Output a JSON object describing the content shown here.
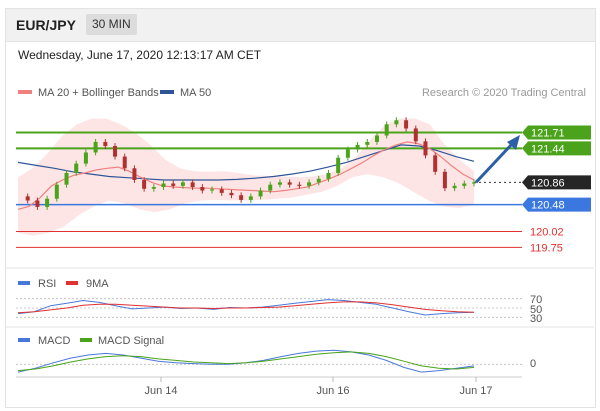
{
  "header": {
    "pair": "EUR/JPY",
    "timeframe": "30 MIN"
  },
  "timestamp": "Wednesday, June 17, 2020 12:13:17 AM CET",
  "legend": {
    "ma20_bb": "MA 20 + Bollinger Bands",
    "ma50": "MA 50",
    "credit": "Research © 2020 Trading Central",
    "rsi": "RSI",
    "ma9": "9MA",
    "macd": "MACD",
    "macd_signal": "MACD Signal"
  },
  "colors": {
    "ma20": "#f08080",
    "band": "#fde0e0",
    "ma50": "#2f5597",
    "resistance": "#4aa31a",
    "support": "#3a78e0",
    "target_red": "#e03030",
    "arrow": "#2d5fa8",
    "candle_up": "#4aa31a",
    "candle_down": "#b03030"
  },
  "levels": [
    {
      "value": 121.71,
      "label": "121.71",
      "kind": "resistance"
    },
    {
      "value": 121.44,
      "label": "121.44",
      "kind": "resistance"
    },
    {
      "value": 120.86,
      "label": "120.86",
      "kind": "last"
    },
    {
      "value": 120.48,
      "label": "120.48",
      "kind": "support"
    },
    {
      "value": 120.02,
      "label": "120.02",
      "kind": "target"
    },
    {
      "value": 119.75,
      "label": "119.75",
      "kind": "target"
    }
  ],
  "x_axis": {
    "ticks": [
      "Jun 14",
      "Jun 16",
      "Jun 17"
    ]
  },
  "rsi_axis": {
    "ticks": [
      "70",
      "50",
      "30"
    ]
  },
  "macd_axis": {
    "ticks": [
      "0"
    ]
  },
  "chart_data": {
    "type": "line",
    "title": "EUR/JPY",
    "ylim": [
      119.5,
      122.3
    ],
    "price_close": [
      120.62,
      120.55,
      120.44,
      120.58,
      120.82,
      121.02,
      121.18,
      121.37,
      121.55,
      121.48,
      121.3,
      121.1,
      120.9,
      120.75,
      120.78,
      120.84,
      120.8,
      120.86,
      120.78,
      120.72,
      120.74,
      120.68,
      120.64,
      120.56,
      120.62,
      120.72,
      120.82,
      120.86,
      120.82,
      120.8,
      120.86,
      120.92,
      121.02,
      121.28,
      121.42,
      121.5,
      121.55,
      121.66,
      121.85,
      121.92,
      121.78,
      121.56,
      121.32,
      121.04,
      120.76,
      120.8,
      120.84,
      120.86
    ],
    "ma20": [
      120.4,
      120.45,
      120.6,
      120.8,
      120.9,
      120.98,
      121.02,
      121.07,
      121.1,
      121.12,
      121.05,
      120.95,
      120.86,
      120.8,
      120.78,
      120.77,
      120.76,
      120.76,
      120.75,
      120.74,
      120.73,
      120.72,
      120.71,
      120.7,
      120.72,
      120.75,
      120.78,
      120.85,
      120.92,
      121.0,
      121.1,
      121.2,
      121.32,
      121.42,
      121.5,
      121.55,
      121.52,
      121.44,
      121.3,
      121.14,
      121.0,
      120.9
    ],
    "bb_upper": [
      120.95,
      121.1,
      121.35,
      121.65,
      121.85,
      121.95,
      121.95,
      121.85,
      121.7,
      121.5,
      121.25,
      121.1,
      121.05,
      121.04,
      121.05,
      121.02,
      120.98,
      120.97,
      120.96,
      120.95,
      120.96,
      121.0,
      121.1,
      121.3,
      121.6,
      121.85,
      121.95,
      121.95,
      121.85,
      121.5,
      121.25,
      121.05
    ],
    "bb_lower": [
      120.0,
      119.95,
      120.0,
      120.1,
      120.3,
      120.45,
      120.55,
      120.5,
      120.4,
      120.35,
      120.4,
      120.5,
      120.55,
      120.56,
      120.55,
      120.55,
      120.56,
      120.58,
      120.6,
      120.65,
      120.7,
      120.8,
      120.95,
      121.0,
      120.95,
      120.85,
      120.7,
      120.55,
      120.45,
      120.42,
      120.48
    ],
    "ma50": [
      121.2,
      121.15,
      121.1,
      121.04,
      121.0,
      120.96,
      120.94,
      120.92,
      120.9,
      120.9,
      120.9,
      120.9,
      120.91,
      120.93,
      120.96,
      121.0,
      121.05,
      121.12,
      121.2,
      121.3,
      121.4,
      121.5,
      121.48,
      121.4,
      121.3,
      121.22
    ],
    "rsi": [
      38,
      42,
      55,
      60,
      66,
      62,
      55,
      48,
      50,
      52,
      49,
      50,
      47,
      51,
      50,
      52,
      56,
      60,
      64,
      68,
      66,
      62,
      58,
      50,
      42,
      35,
      38,
      40,
      41
    ],
    "rsi_ma9": [
      40,
      42,
      46,
      50,
      56,
      58,
      58,
      56,
      54,
      52,
      50,
      50,
      49,
      50,
      50,
      51,
      52,
      55,
      58,
      61,
      63,
      63,
      61,
      57,
      52,
      47,
      44,
      42,
      41
    ],
    "macd": [
      -0.1,
      -0.05,
      0.02,
      0.08,
      0.12,
      0.14,
      0.12,
      0.08,
      0.04,
      0.02,
      0.01,
      0.0,
      0.0,
      0.02,
      0.05,
      0.1,
      0.14,
      0.17,
      0.18,
      0.16,
      0.12,
      0.05,
      -0.04,
      -0.1,
      -0.08,
      -0.05,
      -0.02
    ],
    "macd_signal": [
      -0.08,
      -0.06,
      -0.02,
      0.03,
      0.07,
      0.1,
      0.11,
      0.1,
      0.07,
      0.05,
      0.03,
      0.02,
      0.01,
      0.02,
      0.04,
      0.07,
      0.1,
      0.13,
      0.15,
      0.16,
      0.14,
      0.1,
      0.04,
      -0.02,
      -0.05,
      -0.06,
      -0.04
    ],
    "forecast": {
      "from": 120.86,
      "to": 121.71
    }
  }
}
